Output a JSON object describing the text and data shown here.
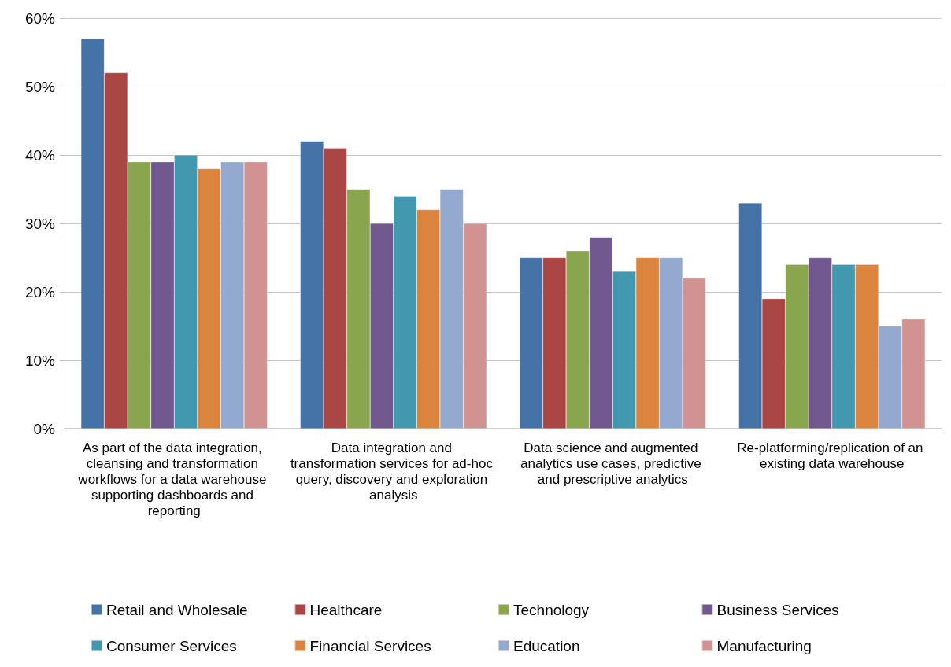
{
  "chart_data": {
    "type": "bar",
    "categories": [
      "As part of the data integration, cleansing and transformation workflows for a data warehouse supporting dashboards and reporting",
      "Data integration and transformation services for ad-hoc query, discovery and exploration analysis",
      "Data science and augmented analytics use cases, predictive and prescriptive analytics",
      "Re-platforming/replication of an existing data warehouse"
    ],
    "series": [
      {
        "name": "Retail and Wholesale",
        "color": "#4572a7",
        "values": [
          57,
          42,
          25,
          33
        ]
      },
      {
        "name": "Healthcare",
        "color": "#aa4643",
        "values": [
          52,
          41,
          25,
          19
        ]
      },
      {
        "name": "Technology",
        "color": "#89a54e",
        "values": [
          39,
          35,
          26,
          24
        ]
      },
      {
        "name": "Business Services",
        "color": "#71588f",
        "values": [
          39,
          30,
          28,
          25
        ]
      },
      {
        "name": "Consumer Services",
        "color": "#4198af",
        "values": [
          40,
          34,
          23,
          24
        ]
      },
      {
        "name": "Financial Services",
        "color": "#db843d",
        "values": [
          38,
          32,
          25,
          24
        ]
      },
      {
        "name": "Education",
        "color": "#93a9cf",
        "values": [
          39,
          35,
          25,
          15
        ]
      },
      {
        "name": "Manufacturing",
        "color": "#d19392",
        "values": [
          39,
          30,
          22,
          16
        ]
      }
    ],
    "ylim": [
      0,
      60
    ],
    "yticks": [
      {
        "value": 0,
        "label": "0%"
      },
      {
        "value": 10,
        "label": "10%"
      },
      {
        "value": 20,
        "label": "20%"
      },
      {
        "value": 30,
        "label": "30%"
      },
      {
        "value": 40,
        "label": "40%"
      },
      {
        "value": 50,
        "label": "50%"
      },
      {
        "value": 60,
        "label": "60%"
      }
    ],
    "grid": "y",
    "legend": "bottom"
  }
}
